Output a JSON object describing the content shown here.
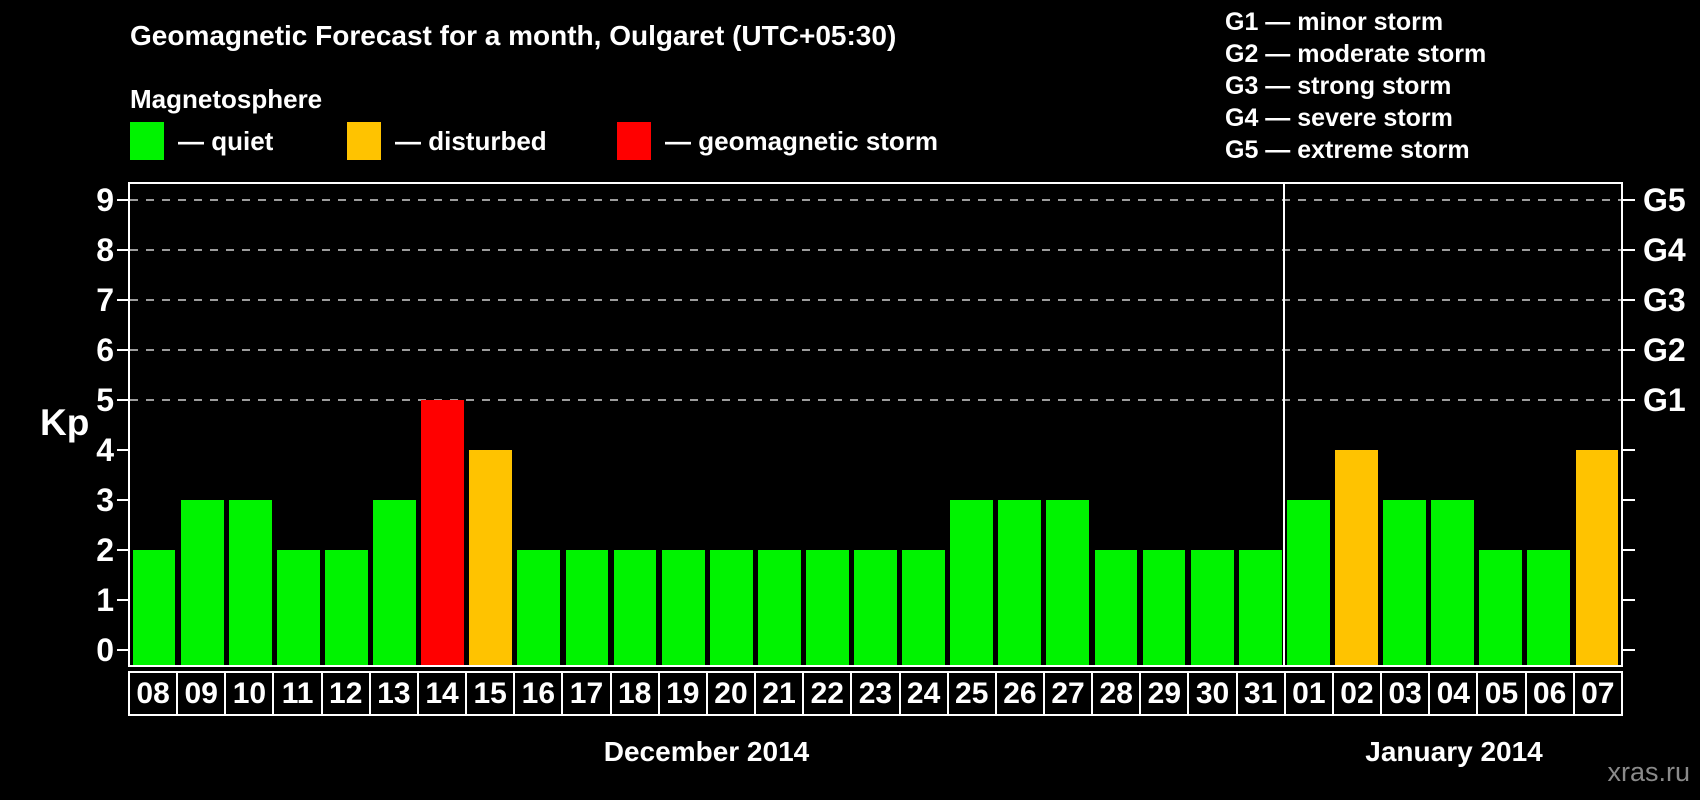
{
  "magnetosphere_legend": {
    "heading": "Magnetosphere",
    "items": [
      {
        "key": "quiet",
        "label": "— quiet",
        "color": "#00f300"
      },
      {
        "key": "disturbed",
        "label": "— disturbed",
        "color": "#ffc300"
      },
      {
        "key": "storm",
        "label": "— geomagnetic storm",
        "color": "#ff0000"
      }
    ]
  },
  "storm_scale_legend": {
    "items": [
      {
        "label": "G1 — minor storm"
      },
      {
        "label": "G2 — moderate storm"
      },
      {
        "label": "G3 — strong storm"
      },
      {
        "label": "G4 — severe storm"
      },
      {
        "label": "G5 — extreme storm"
      }
    ]
  },
  "watermark": "xras.ru",
  "chart_data": {
    "type": "bar",
    "title": "Geomagnetic Forecast for a month, Oulgaret (UTC+05:30)",
    "xlabel": "",
    "ylabel": "Kp",
    "ylim": [
      -0.3,
      9.36
    ],
    "yticks": [
      0,
      1,
      2,
      3,
      4,
      5,
      6,
      7,
      8,
      9
    ],
    "gridlines_kp": [
      5,
      6,
      7,
      8,
      9
    ],
    "grid": "dashed horizontal gridlines at Kp 5–9 only",
    "legend_position": "top-left and top-right, above plot",
    "right_axis": {
      "labels": [
        "G1",
        "G2",
        "G3",
        "G4",
        "G5"
      ],
      "kp": [
        5,
        6,
        7,
        8,
        9
      ]
    },
    "colors": {
      "quiet": "#00f300",
      "disturbed": "#ffc300",
      "storm": "#ff0000",
      "axis": "#ffffff",
      "gridline": "#9c9c9c",
      "background": "#000000"
    },
    "months": [
      {
        "label": "December 2014",
        "days": [
          "08",
          "09",
          "10",
          "11",
          "12",
          "13",
          "14",
          "15",
          "16",
          "17",
          "18",
          "19",
          "20",
          "21",
          "22",
          "23",
          "24",
          "25",
          "26",
          "27",
          "28",
          "29",
          "30",
          "31"
        ],
        "values": [
          2,
          3,
          3,
          2,
          2,
          3,
          5,
          4,
          2,
          2,
          2,
          2,
          2,
          2,
          2,
          2,
          2,
          3,
          3,
          3,
          2,
          2,
          2,
          2
        ],
        "status": [
          "quiet",
          "quiet",
          "quiet",
          "quiet",
          "quiet",
          "quiet",
          "storm",
          "disturbed",
          "quiet",
          "quiet",
          "quiet",
          "quiet",
          "quiet",
          "quiet",
          "quiet",
          "quiet",
          "quiet",
          "quiet",
          "quiet",
          "quiet",
          "quiet",
          "quiet",
          "quiet",
          "quiet"
        ]
      },
      {
        "label": "January 2014",
        "days": [
          "01",
          "02",
          "03",
          "04",
          "05",
          "06",
          "07"
        ],
        "values": [
          3,
          4,
          3,
          3,
          2,
          2,
          4
        ],
        "status": [
          "quiet",
          "disturbed",
          "quiet",
          "quiet",
          "quiet",
          "quiet",
          "disturbed"
        ]
      }
    ]
  }
}
